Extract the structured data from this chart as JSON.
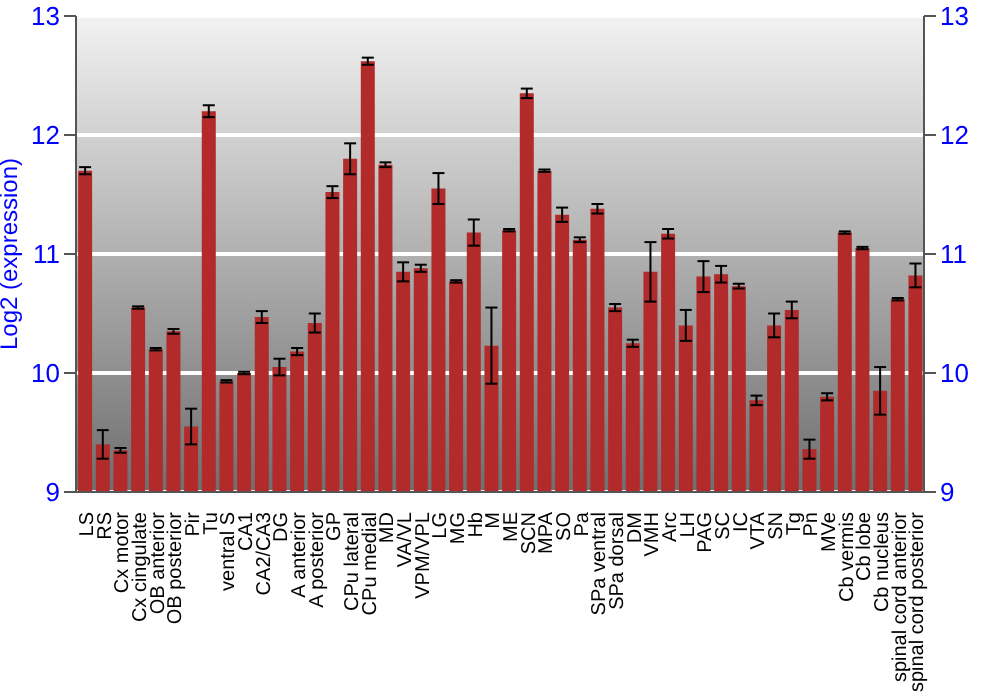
{
  "chart_data": {
    "type": "bar",
    "ylabel": "Log2 (expression)",
    "categories": [
      "LS",
      "RS",
      "Cx motor",
      "Cx cingulate",
      "OB anterior",
      "OB posterior",
      "Pir",
      "Tu",
      "ventral S",
      "CA1",
      "CA2/CA3",
      "DG",
      "A anterior",
      "A posterior",
      "GP",
      "CPu lateral",
      "CPu medial",
      "MD",
      "VA/VL",
      "VPM/VPL",
      "LG",
      "MG",
      "Hb",
      "M",
      "ME",
      "SCN",
      "MPA",
      "SO",
      "Pa",
      "SPa ventral",
      "SPa dorsal",
      "DM",
      "VMH",
      "Arc",
      "LH",
      "PAG",
      "SC",
      "IC",
      "VTA",
      "SN",
      "Tg",
      "Pn",
      "MVe",
      "Cb vermis",
      "Cb lobe",
      "Cb nucleus",
      "spinal cord anterior",
      "spinal cord posterior"
    ],
    "values": [
      11.7,
      9.4,
      9.35,
      10.55,
      10.2,
      10.35,
      9.55,
      12.2,
      9.93,
      10.0,
      10.47,
      10.05,
      10.18,
      10.42,
      11.52,
      11.8,
      12.62,
      11.75,
      10.85,
      10.88,
      11.55,
      10.77,
      11.18,
      10.23,
      11.2,
      12.35,
      11.7,
      11.33,
      11.12,
      11.38,
      10.55,
      10.25,
      10.85,
      11.17,
      10.4,
      10.81,
      10.83,
      10.73,
      9.77,
      10.4,
      10.53,
      9.36,
      9.8,
      11.18,
      11.05,
      9.85,
      10.62,
      10.82
    ],
    "errors": [
      0.03,
      0.12,
      0.02,
      0.01,
      0.01,
      0.02,
      0.15,
      0.05,
      0.01,
      0.01,
      0.05,
      0.07,
      0.03,
      0.08,
      0.05,
      0.13,
      0.03,
      0.02,
      0.08,
      0.03,
      0.13,
      0.01,
      0.11,
      0.32,
      0.01,
      0.04,
      0.01,
      0.06,
      0.02,
      0.04,
      0.03,
      0.03,
      0.25,
      0.04,
      0.13,
      0.13,
      0.07,
      0.02,
      0.04,
      0.1,
      0.07,
      0.08,
      0.03,
      0.01,
      0.01,
      0.2,
      0.01,
      0.1
    ],
    "color": "#b22a2a",
    "ylim": [
      9,
      13
    ],
    "yticks": [
      9,
      10,
      11,
      12,
      13
    ],
    "y2lim": [
      9,
      13
    ],
    "y2ticks": [
      9,
      10,
      11,
      12,
      13
    ],
    "grid": "y"
  }
}
